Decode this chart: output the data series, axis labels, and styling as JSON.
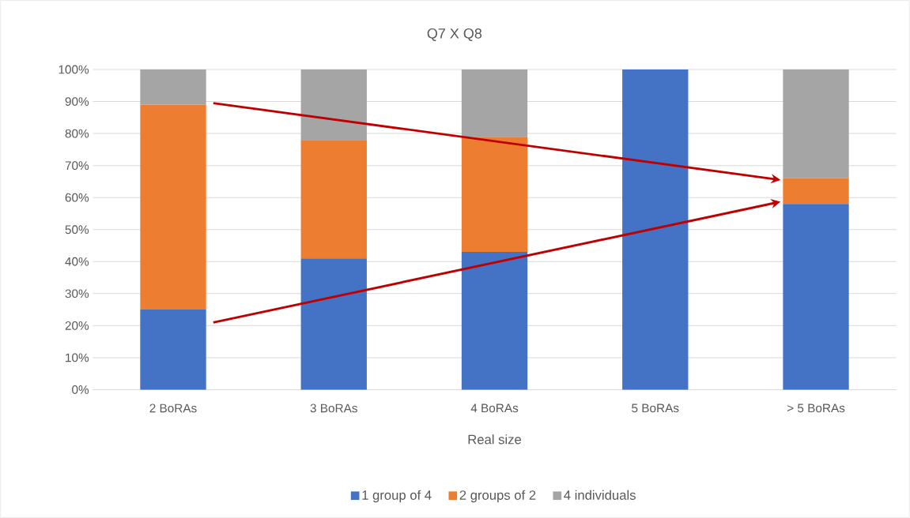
{
  "chart_data": {
    "type": "bar",
    "title": "Q7 X Q8",
    "xlabel": "Real size",
    "stacked": true,
    "grid": "y",
    "legend": "bottom",
    "categories": [
      "2 BoRAs",
      "3 BoRAs",
      "4 BoRAs",
      "5 BoRAs",
      "> 5 BoRAs"
    ],
    "series": [
      {
        "name": "1 group of 4",
        "color": "#4472c4",
        "values": [
          25,
          41,
          43,
          100,
          58
        ]
      },
      {
        "name": "2 groups of 2",
        "color": "#ed7d31",
        "values": [
          64,
          37,
          36,
          0,
          8
        ]
      },
      {
        "name": "4 individuals",
        "color": "#a5a5a5",
        "values": [
          11,
          22,
          21,
          0,
          34
        ]
      }
    ],
    "ylim": [
      0,
      100
    ],
    "yticks": [
      {
        "value": 0,
        "label": "0%"
      },
      {
        "value": 10,
        "label": "10%"
      },
      {
        "value": 20,
        "label": "20%"
      },
      {
        "value": 30,
        "label": "30%"
      },
      {
        "value": 40,
        "label": "40%"
      },
      {
        "value": 50,
        "label": "50%"
      },
      {
        "value": 60,
        "label": "60%"
      },
      {
        "value": 70,
        "label": "70%"
      },
      {
        "value": 80,
        "label": "80%"
      },
      {
        "value": 90,
        "label": "90%"
      },
      {
        "value": 100,
        "label": "100%"
      }
    ]
  }
}
